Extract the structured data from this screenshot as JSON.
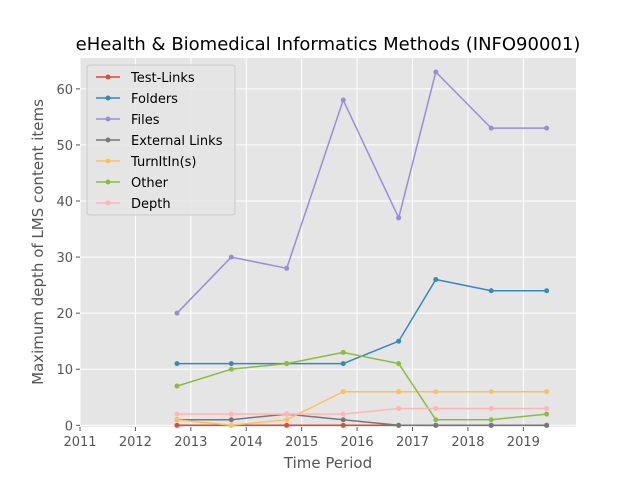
{
  "chart_data": {
    "type": "line",
    "title": "eHealth & Biomedical Informatics Methods (INFO90001)",
    "xlabel": "Time Period",
    "ylabel": "Maximum depth of LMS content items",
    "xlim": [
      2011,
      2019.95
    ],
    "ylim": [
      -0.3,
      65.5
    ],
    "xticks": [
      2011,
      2012,
      2013,
      2014,
      2015,
      2016,
      2017,
      2018,
      2019
    ],
    "yticks": [
      0,
      10,
      20,
      30,
      40,
      50,
      60
    ],
    "grid": true,
    "legend_position": "upper-left",
    "x": [
      2012.75,
      2013.73,
      2014.73,
      2015.75,
      2016.75,
      2017.42,
      2018.42,
      2019.42
    ],
    "series": [
      {
        "name": "Test-Links",
        "color": "#E24A33",
        "values": [
          0,
          0,
          0,
          0,
          0,
          0,
          0,
          0
        ]
      },
      {
        "name": "Folders",
        "color": "#348ABD",
        "values": [
          11,
          11,
          11,
          11,
          15,
          26,
          24,
          24
        ]
      },
      {
        "name": "Files",
        "color": "#988ED5",
        "values": [
          20,
          30,
          28,
          58,
          37,
          63,
          53,
          53
        ]
      },
      {
        "name": "External Links",
        "color": "#777777",
        "values": [
          1,
          1,
          2,
          1,
          0,
          0,
          0,
          0
        ]
      },
      {
        "name": "TurnItIn(s)",
        "color": "#FBC15E",
        "values": [
          1,
          0,
          1,
          6,
          6,
          6,
          6,
          6
        ]
      },
      {
        "name": "Other",
        "color": "#8EBA42",
        "values": [
          7,
          10,
          11,
          13,
          11,
          1,
          1,
          2
        ]
      },
      {
        "name": "Depth",
        "color": "#FFB5B8",
        "values": [
          2,
          2,
          2,
          2,
          3,
          3,
          3,
          3
        ]
      }
    ]
  }
}
